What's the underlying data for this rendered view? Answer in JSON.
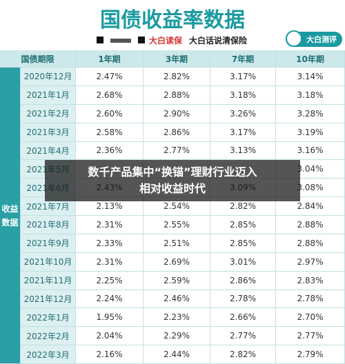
{
  "header": {
    "title": "国债收益率数据",
    "brand": "大白读保",
    "slogan": "大白话说清保险",
    "logo": "大白测评"
  },
  "table": {
    "columns": [
      "国债期限",
      "1年期",
      "3年期",
      "7年期",
      "10年期"
    ],
    "row_group": "收益数据",
    "rows": [
      [
        "2020年12月",
        "2.47%",
        "2.82%",
        "3.17%",
        "3.14%"
      ],
      [
        "2021年1月",
        "2.68%",
        "2.88%",
        "3.18%",
        "3.18%"
      ],
      [
        "2021年2月",
        "2.60%",
        "2.90%",
        "3.26%",
        "3.28%"
      ],
      [
        "2021年3月",
        "2.58%",
        "2.86%",
        "3.17%",
        "3.19%"
      ],
      [
        "2021年4月",
        "2.36%",
        "2.77%",
        "3.13%",
        "3.16%"
      ],
      [
        "2021年5月",
        null,
        null,
        null,
        "3.04%"
      ],
      [
        "2021年6月",
        "2.43%",
        null,
        "3.09%",
        "3.08%"
      ],
      [
        "2021年7月",
        "2.13%",
        "2.54%",
        "2.82%",
        "2.84%"
      ],
      [
        "2021年8月",
        "2.31%",
        "2.55%",
        "2.85%",
        "2.88%"
      ],
      [
        "2021年9月",
        "2.33%",
        "2.51%",
        "2.85%",
        "2.88%"
      ],
      [
        "2021年10月",
        "2.31%",
        "2.69%",
        "3.01%",
        "2.97%"
      ],
      [
        "2021年11月",
        "2.25%",
        "2.59%",
        "2.86%",
        "2.83%"
      ],
      [
        "2021年12月",
        "2.24%",
        "2.46%",
        "2.78%",
        "2.78%"
      ],
      [
        "2022年1月",
        "1.95%",
        "2.23%",
        "2.66%",
        "2.70%"
      ],
      [
        "2022年2月",
        "2.04%",
        "2.29%",
        "2.77%",
        "2.77%"
      ],
      [
        "2022年3月",
        "2.16%",
        "2.44%",
        "2.82%",
        "2.79%"
      ]
    ]
  },
  "banner": {
    "lines": [
      "数千产品集中“换锚”理财行业迈入",
      "相对收益时代"
    ]
  }
}
